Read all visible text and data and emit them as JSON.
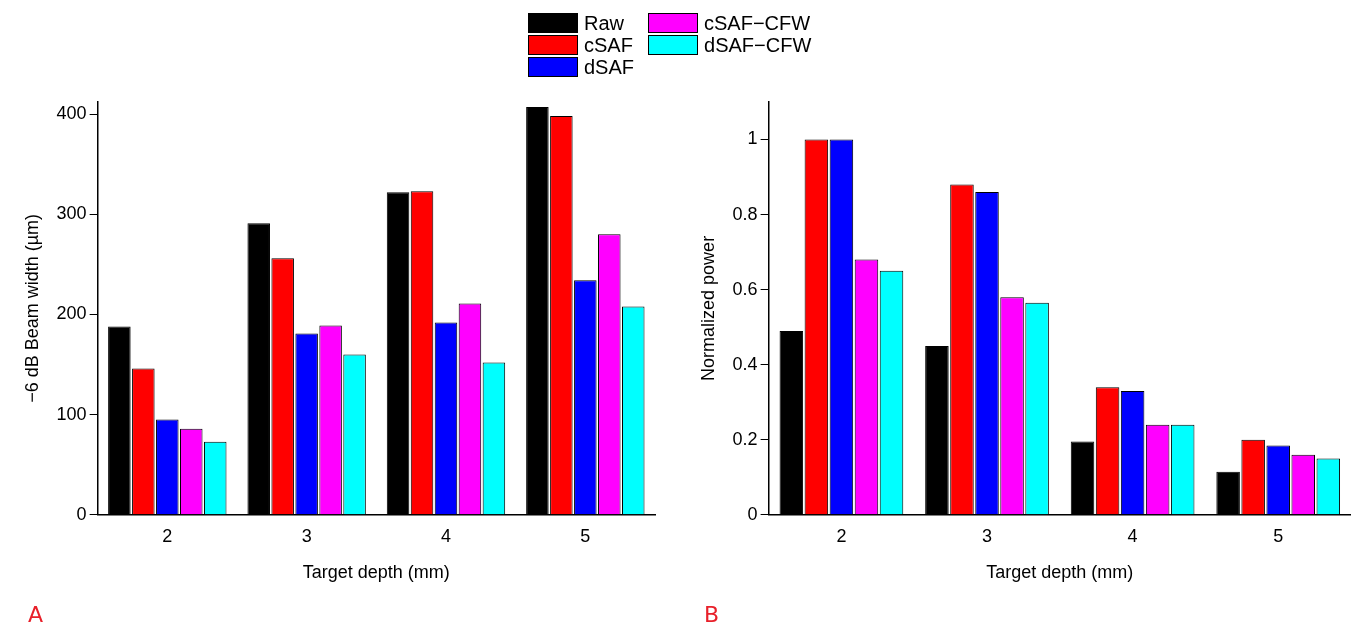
{
  "chart_data": [
    {
      "type": "bar",
      "xlabel": "Target depth (mm)",
      "ylabel": "−6 dB Beam width (µm)",
      "categories": [
        "2",
        "3",
        "4",
        "5"
      ],
      "ylim": [
        0,
        412
      ],
      "yticks": [
        0,
        100,
        200,
        300,
        400
      ],
      "grid": false,
      "legend": "top right",
      "annotations": [
        "A"
      ],
      "series": [
        {
          "name": "Raw",
          "color": "#000000",
          "values": [
            188,
            291,
            322,
            407
          ]
        },
        {
          "name": "cSAF",
          "color": "#ff0000",
          "values": [
            146,
            256,
            323,
            398
          ]
        },
        {
          "name": "dSAF",
          "color": "#0000ff",
          "values": [
            95,
            181,
            192,
            234
          ]
        },
        {
          "name": "cSAF−CFW",
          "color": "#ff00ff",
          "values": [
            86,
            189,
            211,
            280
          ]
        },
        {
          "name": "dSAF−CFW",
          "color": "#00ffff",
          "values": [
            73,
            160,
            152,
            208
          ]
        }
      ]
    },
    {
      "type": "bar",
      "xlabel": "Target depth (mm)",
      "ylabel": "Normalized power",
      "categories": [
        "2",
        "3",
        "4",
        "5"
      ],
      "ylim": [
        0,
        1.1
      ],
      "yticks": [
        0,
        0.2,
        0.4,
        0.6,
        0.8,
        1
      ],
      "grid": false,
      "legend": false,
      "annotations": [
        "B"
      ],
      "series": [
        {
          "color": "#000000",
          "values": [
            0.49,
            0.45,
            0.195,
            0.115
          ]
        },
        {
          "color": "#ff0000",
          "values": [
            1,
            0.88,
            0.34,
            0.2
          ]
        },
        {
          "color": "#0000ff",
          "values": [
            1,
            0.86,
            0.33,
            0.185
          ]
        },
        {
          "color": "#ff00ff",
          "values": [
            0.68,
            0.58,
            0.24,
            0.16
          ]
        },
        {
          "color": "#00ffff",
          "values": [
            0.65,
            0.565,
            0.24,
            0.15
          ]
        }
      ]
    }
  ]
}
